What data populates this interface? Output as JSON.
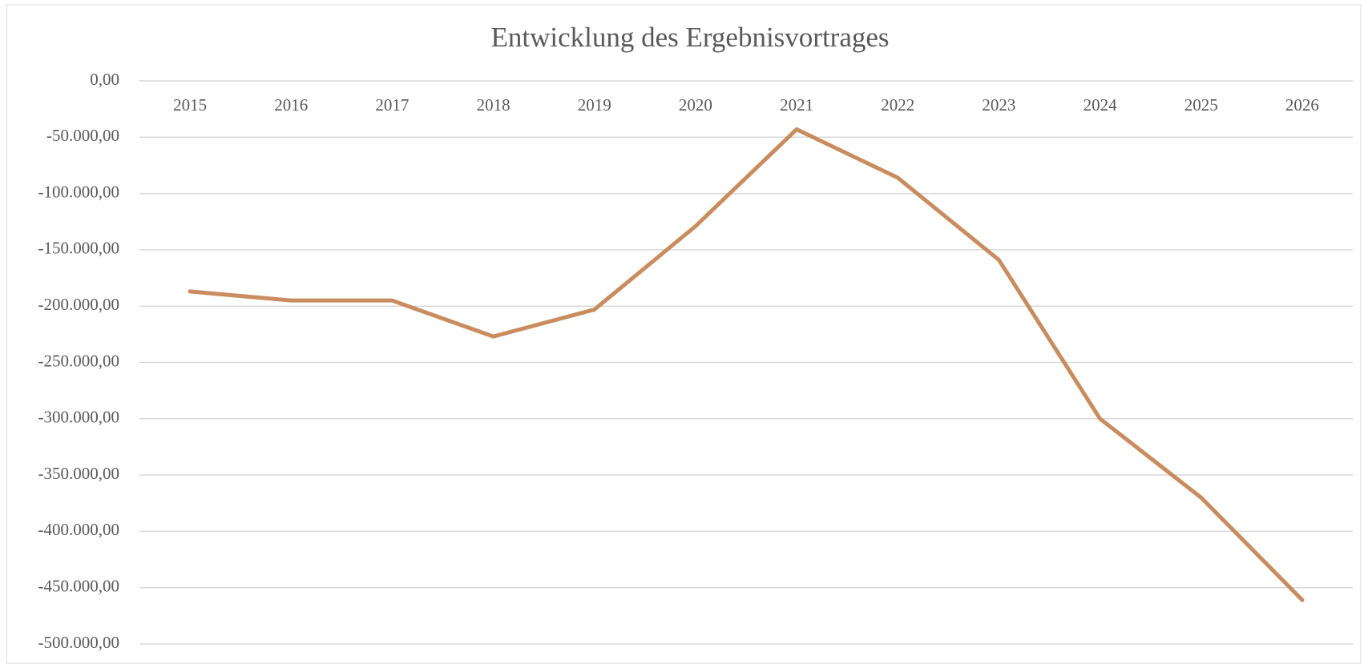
{
  "chart_data": {
    "type": "line",
    "title": "Entwicklung des Ergebnisvortrages",
    "categories": [
      "2015",
      "2016",
      "2017",
      "2018",
      "2019",
      "2020",
      "2021",
      "2022",
      "2023",
      "2024",
      "2025",
      "2026"
    ],
    "series": [
      {
        "name": "Ergebnisvortrag",
        "color": "#c98c5e",
        "values": [
          -187000,
          -195000,
          -195000,
          -227000,
          -203000,
          -129000,
          -43000,
          -86000,
          -159000,
          -300000,
          -370000,
          -461000
        ]
      }
    ],
    "ylim": [
      -500000,
      0
    ],
    "yticks": [
      {
        "value": 0,
        "label": "0,00"
      },
      {
        "value": -50000,
        "label": "-50.000,00"
      },
      {
        "value": -100000,
        "label": "-100.000,00"
      },
      {
        "value": -150000,
        "label": "-150.000,00"
      },
      {
        "value": -200000,
        "label": "-200.000,00"
      },
      {
        "value": -250000,
        "label": "-250.000,00"
      },
      {
        "value": -300000,
        "label": "-300.000,00"
      },
      {
        "value": -350000,
        "label": "-350.000,00"
      },
      {
        "value": -400000,
        "label": "-400.000,00"
      },
      {
        "value": -450000,
        "label": "-450.000,00"
      },
      {
        "value": -500000,
        "label": "-500.000,00"
      }
    ],
    "grid": true
  }
}
